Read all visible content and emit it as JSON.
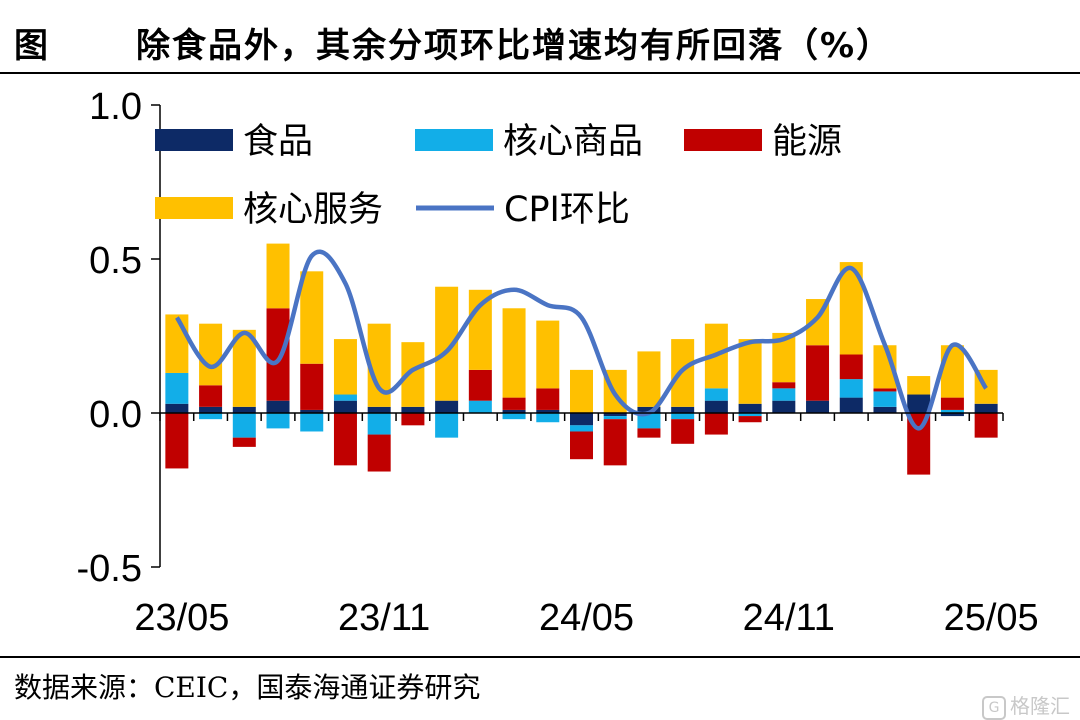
{
  "header": {
    "prefix": "图",
    "title": "除食品外，其余分项环比增速均有所回落（%）"
  },
  "footer": {
    "source": "数据来源：CEIC，国泰海通证券研究"
  },
  "watermark": {
    "text": "格隆汇",
    "icon": "G"
  },
  "chart_data": {
    "type": "bar",
    "stacked": true,
    "title": "",
    "xlabel": "",
    "ylabel": "",
    "ylim": [
      -0.5,
      1.0
    ],
    "yticks": [
      "1.0",
      "0.5",
      "0.0",
      "-0.5"
    ],
    "yticks_values": [
      1.0,
      0.5,
      0.0,
      -0.5
    ],
    "grid": false,
    "legend_position": "top-left",
    "categories": [
      "23/05",
      "23/06",
      "23/07",
      "23/08",
      "23/09",
      "23/10",
      "23/11",
      "23/12",
      "24/01",
      "24/02",
      "24/03",
      "24/04",
      "24/05",
      "24/06",
      "24/07",
      "24/08",
      "24/09",
      "24/10",
      "24/11",
      "24/12",
      "25/01",
      "25/02",
      "25/03",
      "25/04",
      "25/05"
    ],
    "x_tick_labels": [
      {
        "index": 0,
        "label": "23/05"
      },
      {
        "index": 6,
        "label": "23/11"
      },
      {
        "index": 12,
        "label": "24/05"
      },
      {
        "index": 18,
        "label": "24/11"
      },
      {
        "index": 24,
        "label": "25/05"
      }
    ],
    "series": [
      {
        "name": "食品",
        "kind": "bar",
        "color": "#0d2a66",
        "values": [
          0.03,
          0.02,
          0.02,
          0.04,
          0.01,
          0.04,
          0.02,
          0.02,
          0.04,
          0.0,
          0.01,
          0.01,
          -0.04,
          -0.01,
          0.02,
          0.02,
          0.04,
          0.03,
          0.04,
          0.04,
          0.05,
          0.02,
          0.06,
          -0.01,
          0.03
        ]
      },
      {
        "name": "核心商品",
        "kind": "bar",
        "color": "#12aee8",
        "values": [
          0.1,
          -0.02,
          -0.08,
          -0.05,
          -0.06,
          0.02,
          -0.07,
          0.0,
          -0.08,
          0.04,
          -0.02,
          -0.03,
          -0.02,
          -0.01,
          -0.05,
          -0.02,
          0.04,
          -0.01,
          0.04,
          0.0,
          0.06,
          0.05,
          0.0,
          0.01,
          0.0
        ]
      },
      {
        "name": "能源",
        "kind": "bar",
        "color": "#c00000",
        "values": [
          -0.18,
          0.07,
          -0.03,
          0.3,
          0.15,
          -0.17,
          -0.12,
          -0.04,
          0.0,
          0.1,
          0.04,
          0.07,
          -0.09,
          -0.15,
          -0.03,
          -0.08,
          -0.07,
          -0.02,
          0.02,
          0.18,
          0.08,
          0.01,
          -0.2,
          0.04,
          -0.08
        ]
      },
      {
        "name": "核心服务",
        "kind": "bar",
        "color": "#ffc000",
        "values": [
          0.19,
          0.2,
          0.25,
          0.21,
          0.3,
          0.18,
          0.27,
          0.21,
          0.37,
          0.26,
          0.29,
          0.22,
          0.14,
          0.14,
          0.18,
          0.22,
          0.21,
          0.21,
          0.16,
          0.15,
          0.3,
          0.14,
          0.06,
          0.17,
          0.11
        ]
      },
      {
        "name": "CPI环比",
        "kind": "line",
        "color": "#4a74c4",
        "values": [
          0.31,
          0.15,
          0.26,
          0.17,
          0.51,
          0.42,
          0.08,
          0.14,
          0.2,
          0.35,
          0.4,
          0.35,
          0.31,
          0.06,
          0.0,
          0.14,
          0.19,
          0.23,
          0.24,
          0.31,
          0.47,
          0.22,
          -0.05,
          0.22,
          0.08
        ]
      }
    ]
  }
}
